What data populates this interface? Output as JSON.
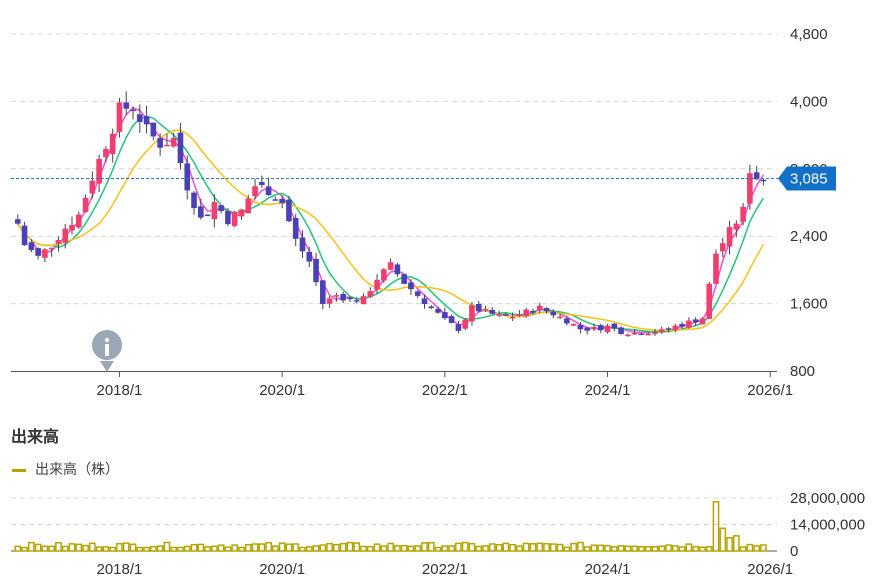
{
  "chart_data": [
    {
      "type": "candlestick",
      "x_ticks": [
        "2018/1",
        "2020/1",
        "2022/1",
        "2024/1",
        "2026/1"
      ],
      "y_ticks": [
        "800",
        "1,600",
        "2,400",
        "3,200",
        "4,000",
        "4,800"
      ],
      "ylim": [
        800,
        4800
      ],
      "grid": true,
      "current_price": 3085,
      "current_price_label": "3,085",
      "price_path": [
        [
          "2016/10",
          2550
        ],
        [
          "2016/11",
          2300
        ],
        [
          "2017/1",
          2150
        ],
        [
          "2017/3",
          2300
        ],
        [
          "2017/5",
          2500
        ],
        [
          "2017/7",
          2650
        ],
        [
          "2017/9",
          3100
        ],
        [
          "2017/11",
          3500
        ],
        [
          "2018/1",
          3900
        ],
        [
          "2018/3",
          3950
        ],
        [
          "2018/5",
          3650
        ],
        [
          "2018/7",
          3500
        ],
        [
          "2018/9",
          3550
        ],
        [
          "2018/11",
          3000
        ],
        [
          "2019/1",
          2600
        ],
        [
          "2019/3",
          2800
        ],
        [
          "2019/5",
          2600
        ],
        [
          "2019/7",
          2700
        ],
        [
          "2019/9",
          3000
        ],
        [
          "2019/11",
          2950
        ],
        [
          "2020/1",
          2800
        ],
        [
          "2020/3",
          2350
        ],
        [
          "2020/5",
          2100
        ],
        [
          "2020/7",
          1600
        ],
        [
          "2020/9",
          1700
        ],
        [
          "2020/11",
          1650
        ],
        [
          "2021/1",
          1650
        ],
        [
          "2021/3",
          1900
        ],
        [
          "2021/5",
          2050
        ],
        [
          "2021/7",
          1850
        ],
        [
          "2021/9",
          1700
        ],
        [
          "2021/11",
          1550
        ],
        [
          "2022/1",
          1400
        ],
        [
          "2022/3",
          1300
        ],
        [
          "2022/5",
          1550
        ],
        [
          "2022/7",
          1500
        ],
        [
          "2022/9",
          1450
        ],
        [
          "2022/11",
          1450
        ],
        [
          "2023/1",
          1500
        ],
        [
          "2023/3",
          1550
        ],
        [
          "2023/5",
          1480
        ],
        [
          "2023/7",
          1400
        ],
        [
          "2023/9",
          1300
        ],
        [
          "2023/11",
          1300
        ],
        [
          "2024/1",
          1330
        ],
        [
          "2024/3",
          1270
        ],
        [
          "2024/5",
          1250
        ],
        [
          "2024/7",
          1270
        ],
        [
          "2024/9",
          1270
        ],
        [
          "2024/11",
          1330
        ],
        [
          "2025/1",
          1380
        ],
        [
          "2025/3",
          1430
        ],
        [
          "2025/5",
          2200
        ],
        [
          "2025/7",
          2450
        ],
        [
          "2025/9",
          2700
        ],
        [
          "2025/10",
          3200
        ],
        [
          "2025/11",
          3100
        ],
        [
          "2025/12",
          3085
        ]
      ]
    },
    {
      "type": "bar",
      "title": "出来高",
      "legend": "出来高（株）",
      "x_ticks": [
        "2018/1",
        "2020/1",
        "2022/1",
        "2024/1",
        "2026/1"
      ],
      "y_ticks": [
        "0",
        "14,000,000",
        "28,000,000"
      ],
      "ylim": [
        0,
        28000000
      ],
      "spike_months": [
        [
          "2025/5",
          26000000
        ],
        [
          "2025/6",
          12000000
        ],
        [
          "2025/7",
          7000000
        ],
        [
          "2025/8",
          8000000
        ]
      ],
      "baseline_volume": 3000000
    }
  ],
  "colors": {
    "up": "#f03e6e",
    "down": "#4a40b8",
    "ma_short": "#f04ed8",
    "ma_mid": "#22c47a",
    "ma_long": "#f6c21a",
    "volume": "#b5a400",
    "badge": "#1270c8"
  },
  "icons": {
    "event_marker": "info-icon"
  }
}
